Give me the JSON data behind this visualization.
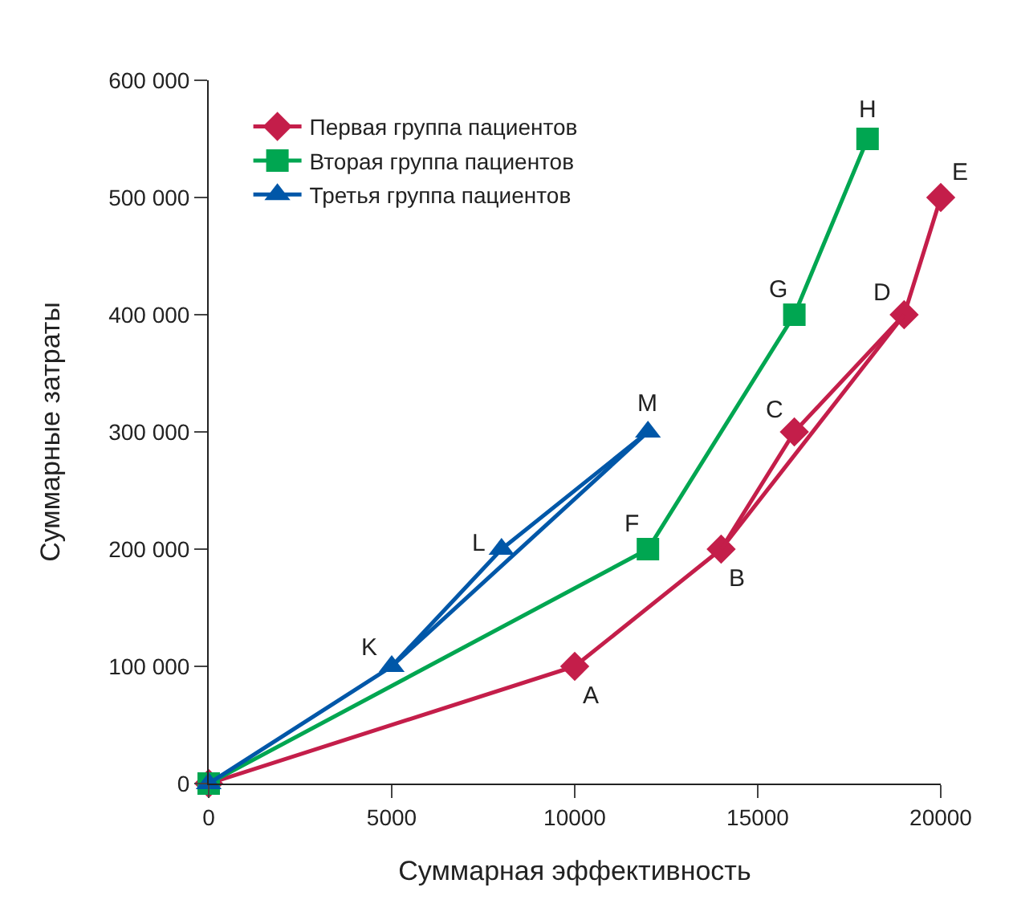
{
  "chart_data": {
    "type": "line",
    "xlabel": "Суммарная эффективность",
    "ylabel": "Суммарные затраты",
    "xlim": [
      0,
      20000
    ],
    "xticks": [
      0,
      5000,
      10000,
      15000,
      20000
    ],
    "ylim": [
      0,
      600000
    ],
    "yticks": [
      {
        "value": 0,
        "label": "0"
      },
      {
        "value": 100000,
        "label": "100 000"
      },
      {
        "value": 200000,
        "label": "200 000"
      },
      {
        "value": 300000,
        "label": "300 000"
      },
      {
        "value": 400000,
        "label": "400 000"
      },
      {
        "value": 500000,
        "label": "500 000"
      },
      {
        "value": 600000,
        "label": "600 000"
      }
    ],
    "legend": "top left",
    "line_style": "solid",
    "series": [
      {
        "name": "Первая группа пациентов",
        "color": "#c41e4a",
        "marker": "diamond",
        "x": [
          0,
          10000,
          14000,
          16000,
          19000,
          20000
        ],
        "values": [
          0,
          100000,
          200000,
          300000,
          400000,
          500000
        ]
      },
      {
        "name": "Вторая группа пациентов",
        "color": "#00a651",
        "marker": "square",
        "x": [
          0,
          12000,
          16000,
          18000
        ],
        "values": [
          0,
          200000,
          400000,
          550000
        ]
      },
      {
        "name": "Третья группа пациентов",
        "color": "#0057a8",
        "marker": "triangle",
        "x": [
          0,
          5000,
          8000,
          12000
        ],
        "values": [
          0,
          100000,
          200000,
          300000
        ]
      },
      {
        "color": "#c41e4a",
        "marker": "none",
        "x": [
          14000,
          19000
        ],
        "values": [
          200000,
          400000
        ]
      },
      {
        "color": "#0057a8",
        "marker": "none",
        "x": [
          5000,
          12000
        ],
        "values": [
          100000,
          300000
        ]
      }
    ],
    "annotations": [
      {
        "text": "A",
        "x": 10000,
        "y": 100000
      },
      {
        "text": "B",
        "x": 14000,
        "y": 200000
      },
      {
        "text": "C",
        "x": 16000,
        "y": 300000
      },
      {
        "text": "D",
        "x": 19000,
        "y": 400000
      },
      {
        "text": "E",
        "x": 20000,
        "y": 500000
      },
      {
        "text": "F",
        "x": 12000,
        "y": 200000
      },
      {
        "text": "G",
        "x": 16000,
        "y": 400000
      },
      {
        "text": "H",
        "x": 18000,
        "y": 550000
      },
      {
        "text": "K",
        "x": 5000,
        "y": 100000
      },
      {
        "text": "L",
        "x": 8000,
        "y": 200000
      },
      {
        "text": "M",
        "x": 12000,
        "y": 300000
      }
    ]
  }
}
